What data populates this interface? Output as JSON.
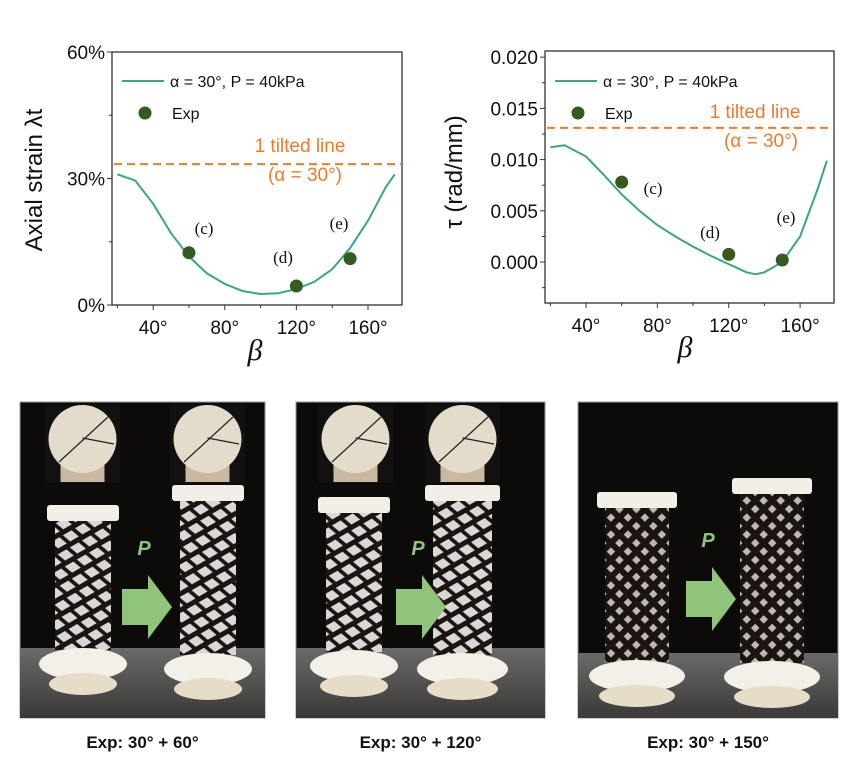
{
  "chart_data": [
    {
      "type": "line",
      "ylabel": "Axial strain λt",
      "xlabel": "β",
      "xlim": [
        17,
        179
      ],
      "ylim": [
        0,
        60
      ],
      "x_ticks": [
        "40°",
        "80°",
        "120°",
        "160°"
      ],
      "x_tick_values": [
        40,
        80,
        120,
        160
      ],
      "y_ticks": [
        "0%",
        "30%",
        "60%"
      ],
      "y_tick_values": [
        0,
        30,
        60
      ],
      "grid": false,
      "legend_placement": "top-left",
      "series": [
        {
          "name": "α = 30°, P = 40kPa",
          "kind": "line",
          "color": "#3aa87a",
          "x": [
            20,
            30,
            40,
            50,
            60,
            70,
            80,
            90,
            100,
            110,
            120,
            130,
            140,
            150,
            160,
            170,
            175
          ],
          "y": [
            31,
            29.5,
            24,
            17,
            11.5,
            7.5,
            5,
            3.3,
            2.6,
            2.8,
            3.8,
            5.5,
            8.5,
            13.5,
            20,
            28,
            31
          ]
        },
        {
          "name": "Exp",
          "kind": "scatter",
          "color": "#375a22",
          "x": [
            60,
            120,
            150
          ],
          "y": [
            12.4,
            4.5,
            11
          ],
          "labels": [
            "(c)",
            "(d)",
            "(e)"
          ]
        }
      ],
      "reference_line": {
        "y": 33.4,
        "color": "#f07a2a",
        "label_line1": "1 tilted line",
        "label_line2": "(α = 30°)"
      }
    },
    {
      "type": "line",
      "ylabel": "τ (rad/mm)",
      "xlabel": "β",
      "xlim": [
        17,
        179
      ],
      "ylim": [
        -0.004,
        0.0206
      ],
      "x_ticks": [
        "40°",
        "80°",
        "120°",
        "160°"
      ],
      "x_tick_values": [
        40,
        80,
        120,
        160
      ],
      "y_ticks": [
        "0.000",
        "0.005",
        "0.010",
        "0.015",
        "0.020"
      ],
      "y_tick_values": [
        0,
        0.005,
        0.01,
        0.015,
        0.02
      ],
      "grid": false,
      "legend_placement": "top-left",
      "series": [
        {
          "name": "α = 30°, P = 40kPa",
          "kind": "line",
          "color": "#3aa87a",
          "x": [
            20,
            28,
            40,
            50,
            60,
            70,
            80,
            90,
            100,
            110,
            120,
            130,
            135,
            140,
            150,
            160,
            170,
            175
          ],
          "y": [
            0.0112,
            0.0114,
            0.0103,
            0.0085,
            0.0066,
            0.005,
            0.0036,
            0.0025,
            0.0015,
            0.0006,
            -0.0002,
            -0.001,
            -0.0012,
            -0.001,
            0.0,
            0.0025,
            0.0072,
            0.0099
          ]
        },
        {
          "name": "Exp",
          "kind": "scatter",
          "color": "#375a22",
          "x": [
            60,
            120,
            150
          ],
          "y": [
            0.0078,
            0.00075,
            0.0002
          ],
          "labels": [
            "(c)",
            "(d)",
            "(e)"
          ]
        }
      ],
      "reference_line": {
        "y": 0.0131,
        "color": "#f07a2a",
        "label_line1": "1 tilted line",
        "label_line2": "(α = 30°)"
      }
    }
  ],
  "photos": [
    {
      "caption": "Exp: 30° + 60°",
      "arrow_label": "P",
      "arrow_color": "#8fc47a",
      "mesh": "helical"
    },
    {
      "caption": "Exp: 30° + 120°",
      "arrow_label": "P",
      "arrow_color": "#8fc47a",
      "mesh": "helical"
    },
    {
      "caption": "Exp: 30° + 150°",
      "arrow_label": "P",
      "arrow_color": "#8fc47a",
      "mesh": "diamond"
    }
  ]
}
